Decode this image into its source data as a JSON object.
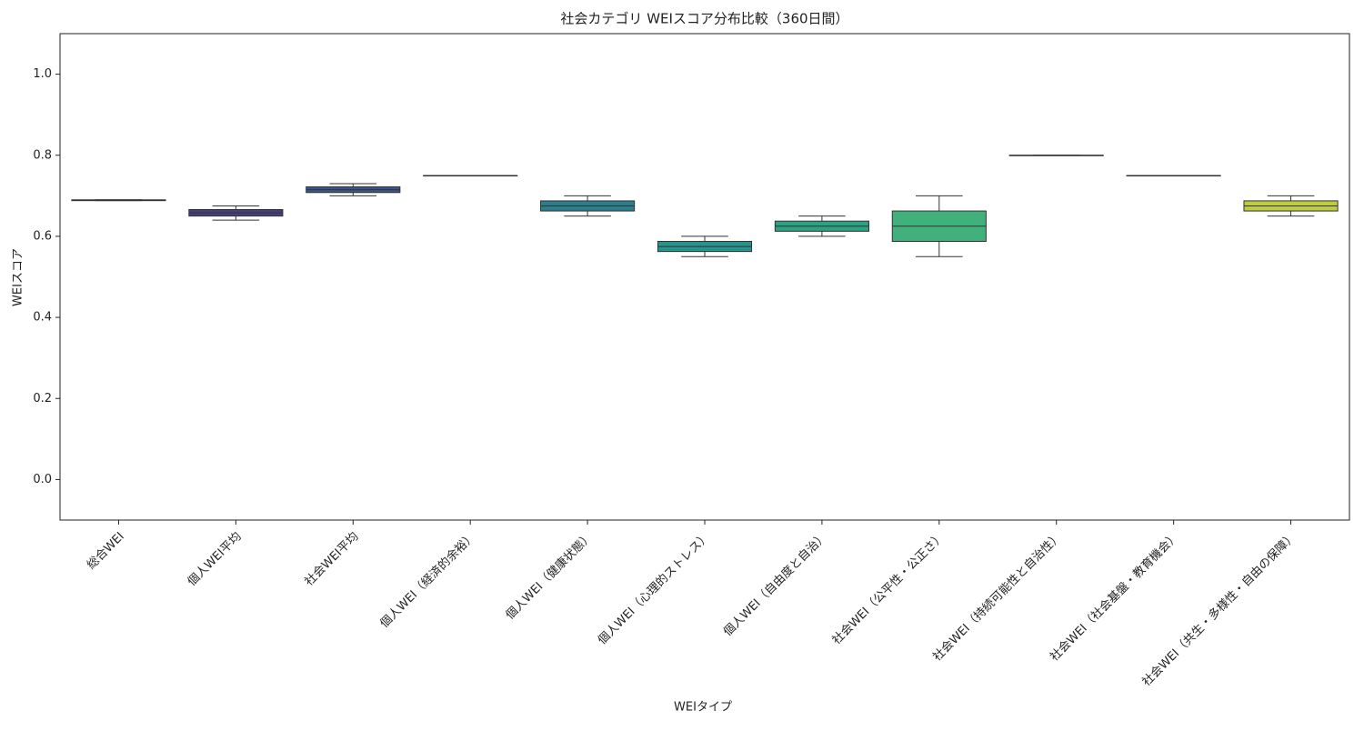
{
  "chart_data": {
    "type": "box",
    "title": "社会カテゴリ WEIスコア分布比較（360日間）",
    "x_label": "WEIタイプ",
    "y_label": "WEIスコア",
    "categories": [
      "総合WEI",
      "個人WEI平均",
      "社会WEI平均",
      "個人WEI（経済的余裕）",
      "個人WEI（健康状態）",
      "個人WEI（心理的ストレス）",
      "個人WEI（自由度と自治）",
      "社会WEI（公平性・公正さ）",
      "社会WEI（持続可能性と自治性）",
      "社会WEI（社会基盤・教育機会）",
      "社会WEI（共生・多様性・自由の保障）"
    ],
    "min": [
      0.688,
      0.64,
      0.7,
      0.75,
      0.65,
      0.55,
      0.6,
      0.55,
      0.8,
      0.75,
      0.65
    ],
    "q1": [
      0.688,
      0.65,
      0.708,
      0.75,
      0.6625,
      0.5625,
      0.6125,
      0.5875,
      0.8,
      0.75,
      0.6625
    ],
    "median": [
      0.689,
      0.658,
      0.715,
      0.75,
      0.675,
      0.575,
      0.625,
      0.625,
      0.8,
      0.75,
      0.675
    ],
    "q3": [
      0.69,
      0.666,
      0.722,
      0.75,
      0.6875,
      0.5875,
      0.6375,
      0.6625,
      0.8,
      0.75,
      0.6875
    ],
    "max": [
      0.69,
      0.675,
      0.73,
      0.75,
      0.7,
      0.6,
      0.65,
      0.7,
      0.8,
      0.75,
      0.7
    ],
    "colors": [
      "#4a2366",
      "#453f7c",
      "#3a5689",
      "#336e8b",
      "#2b7e8b",
      "#26948a",
      "#2ba383",
      "#41b07a",
      "#7cbf5c",
      "#a9c94a",
      "#bfcd3b"
    ],
    "ylim": [
      -0.1,
      1.1
    ],
    "yticks": [
      {
        "value": 0,
        "label": "0.0"
      },
      0.2,
      0.4,
      0.6,
      0.8,
      {
        "value": 1,
        "label": "1.0"
      }
    ],
    "grid": false
  }
}
